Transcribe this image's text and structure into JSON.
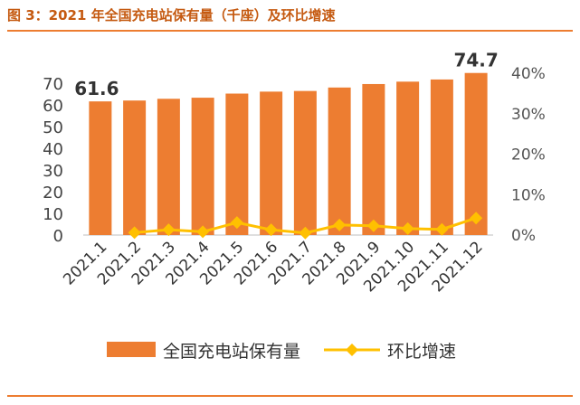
{
  "title": "图 3：2021 年全国充电站保有量（千座）及环比增速",
  "chart_data": {
    "type": "bar",
    "categories": [
      "2021.1",
      "2021.2",
      "2021.3",
      "2021.4",
      "2021.5",
      "2021.6",
      "2021.7",
      "2021.8",
      "2021.9",
      "2021.10",
      "2021.11",
      "2021.12"
    ],
    "series": [
      {
        "name": "全国充电站保有量",
        "type": "bar",
        "axis": "left",
        "values": [
          61.6,
          62.0,
          62.8,
          63.3,
          65.2,
          66.1,
          66.4,
          68.0,
          69.6,
          70.7,
          71.7,
          74.7
        ],
        "color": "#ed7d31"
      },
      {
        "name": "环比增速",
        "type": "line",
        "axis": "right",
        "values": [
          null,
          0.6,
          1.3,
          0.8,
          3.1,
          1.3,
          0.5,
          2.5,
          2.3,
          1.6,
          1.4,
          4.2
        ],
        "color": "#ffc000"
      }
    ],
    "data_labels": [
      {
        "index": 0,
        "text": "61.6"
      },
      {
        "index": 11,
        "text": "74.7"
      }
    ],
    "y_left": {
      "ylim": [
        0,
        70
      ],
      "ticks": [
        "0",
        "10",
        "20",
        "30",
        "40",
        "50",
        "60",
        "70"
      ]
    },
    "y_right": {
      "ylim": [
        0,
        40
      ],
      "ticks": [
        "0%",
        "10%",
        "20%",
        "30%",
        "40%"
      ]
    },
    "legend_position": "bottom",
    "grid": false
  }
}
